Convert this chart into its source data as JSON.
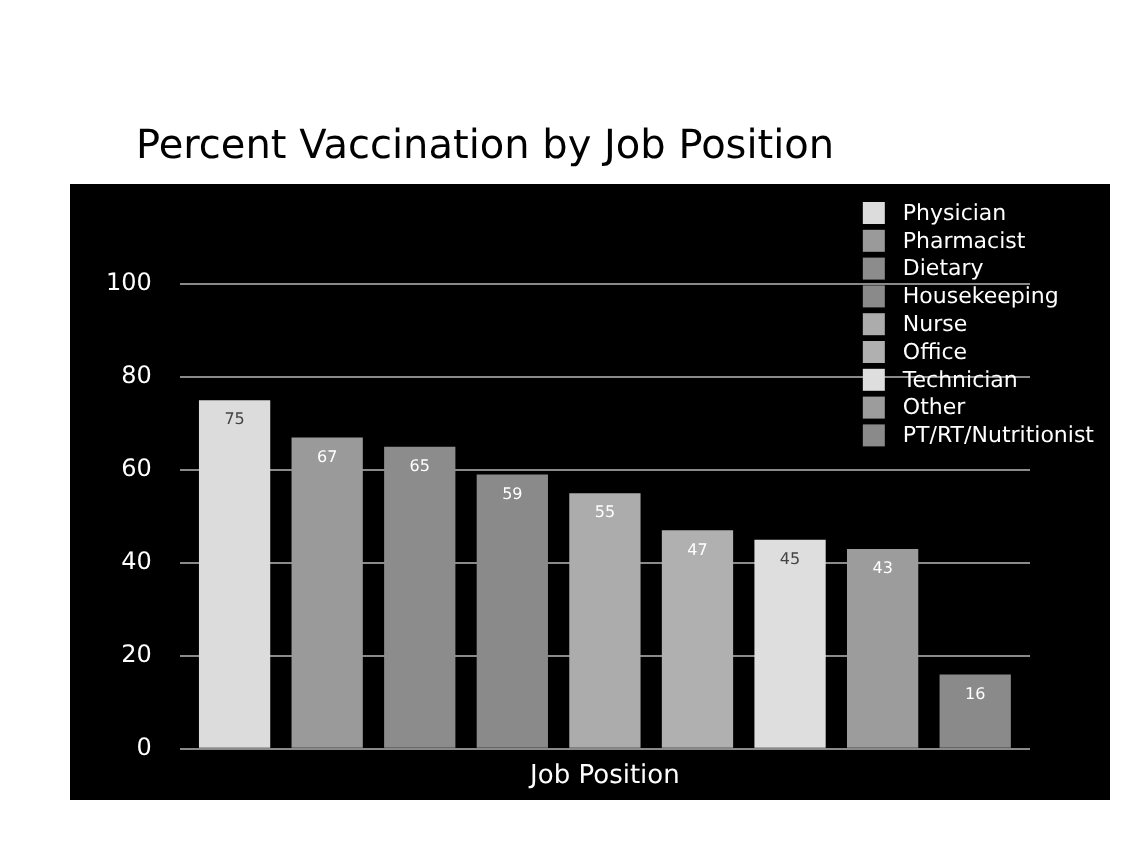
{
  "chart_data": {
    "type": "bar",
    "title": "Percent Vaccination by Job Position",
    "xlabel": "Job Position",
    "categories": [
      null
    ],
    "series": [
      {
        "name": "Physician",
        "color": "#dcdcdc",
        "values": [
          75
        ]
      },
      {
        "name": "Pharmacist",
        "color": "#9a9a9a",
        "values": [
          67
        ]
      },
      {
        "name": "Dietary",
        "color": "#8c8c8c",
        "values": [
          65
        ]
      },
      {
        "name": "Housekeeping",
        "color": "#8a8a8a",
        "values": [
          59
        ]
      },
      {
        "name": "Nurse",
        "color": "#acacac",
        "values": [
          55
        ]
      },
      {
        "name": "Office",
        "color": "#b0b0b0",
        "values": [
          47
        ]
      },
      {
        "name": "Technician",
        "color": "#dedede",
        "values": [
          45
        ]
      },
      {
        "name": "Other",
        "color": "#9c9c9c",
        "values": [
          43
        ]
      },
      {
        "name": "PT/RT/Nutritionist",
        "color": "#8a8a8a",
        "values": [
          16
        ]
      }
    ],
    "ylim": [
      0,
      100
    ],
    "yticks": [
      0,
      20,
      40,
      60,
      80,
      100
    ],
    "grid": "y",
    "legend": "top right",
    "data_labels": true
  }
}
